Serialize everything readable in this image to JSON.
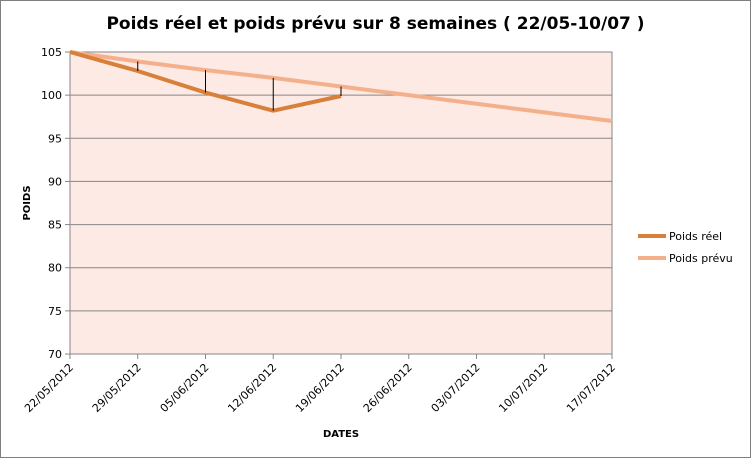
{
  "chart_data": {
    "type": "line",
    "title": "Poids réel et poids prévu sur 8 semaines ( 22/05-10/07 )",
    "xlabel": "DATES",
    "ylabel": "POIDS",
    "ylim": [
      70,
      105
    ],
    "ytick_step": 5,
    "yticks": [
      "70",
      "75",
      "80",
      "85",
      "90",
      "95",
      "100",
      "105"
    ],
    "xlim": [
      "2012-05-22",
      "2012-07-17"
    ],
    "xtick_labels": [
      "22/05/2012",
      "29/05/2012",
      "05/06/2012",
      "12/06/2012",
      "19/06/2012",
      "26/06/2012",
      "03/07/2012",
      "10/07/2012",
      "17/07/2012"
    ],
    "grid": true,
    "legend_position": "right",
    "plot_background": "#fdeae4",
    "series": [
      {
        "name": "Poids réel",
        "color": "#d8803a",
        "points": [
          {
            "x": "2012-05-22",
            "y": 105
          },
          {
            "x": "2012-05-29",
            "y": 102.8
          },
          {
            "x": "2012-06-05",
            "y": 100.3
          },
          {
            "x": "2012-06-12",
            "y": 98.2
          },
          {
            "x": "2012-06-19",
            "y": 99.9
          }
        ]
      },
      {
        "name": "Poids prévu",
        "color": "#f4b08a",
        "points": [
          {
            "x": "2012-05-22",
            "y": 105
          },
          {
            "x": "2012-05-29",
            "y": 103.9
          },
          {
            "x": "2012-06-05",
            "y": 102.9
          },
          {
            "x": "2012-06-12",
            "y": 102
          },
          {
            "x": "2012-06-19",
            "y": 101
          },
          {
            "x": "2012-06-26",
            "y": 100
          },
          {
            "x": "2012-07-03",
            "y": 99
          },
          {
            "x": "2012-07-10",
            "y": 98
          },
          {
            "x": "2012-07-17",
            "y": 97
          }
        ]
      }
    ],
    "deviation_lines": true
  }
}
